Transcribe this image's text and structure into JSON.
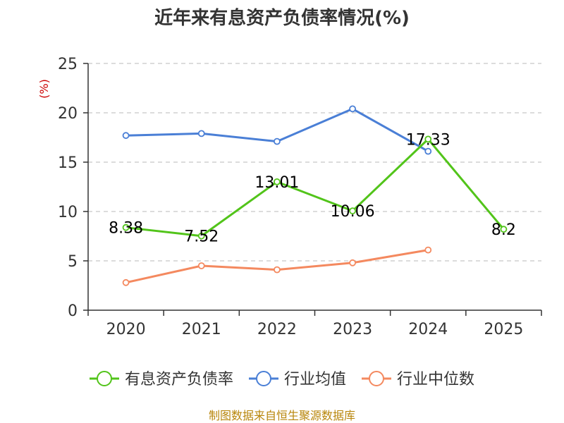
{
  "chart_data": {
    "type": "line",
    "title": "近年来有息资产负债率情况(%)",
    "ylabel": "(%)",
    "categories": [
      "2020",
      "2021",
      "2022",
      "2023",
      "2024",
      "2025"
    ],
    "ylim": [
      0,
      25
    ],
    "yticks": [
      "0",
      "5",
      "10",
      "15",
      "20",
      "25"
    ],
    "grid": true,
    "legend_position": "bottom",
    "series": [
      {
        "name": "有息资产负债率",
        "color": "#52c41a",
        "values": [
          8.38,
          7.52,
          13.01,
          10.06,
          17.33,
          8.2
        ],
        "labels": [
          "8.38",
          "7.52",
          "13.01",
          "10.06",
          "17.33",
          "8.2"
        ]
      },
      {
        "name": "行业均值",
        "color": "#4a7fd6",
        "values": [
          17.7,
          17.9,
          17.1,
          20.4,
          16.1,
          null
        ]
      },
      {
        "name": "行业中位数",
        "color": "#f4895f",
        "values": [
          2.8,
          4.5,
          4.1,
          4.8,
          6.1,
          null
        ]
      }
    ]
  },
  "source": "制图数据来自恒生聚源数据库"
}
